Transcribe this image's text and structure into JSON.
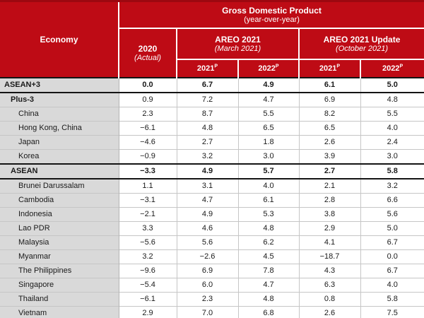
{
  "colors": {
    "header_red": "#be0b15",
    "header_red_dark": "#9c0810",
    "header_text": "#ffffff",
    "economy_col_bg": "#d9d9d9",
    "grid_line": "#c6c6c6",
    "heavy_line": "#141414",
    "bottom_border": "#222c42",
    "text": "#1a1a1a"
  },
  "table": {
    "header": {
      "economy": "Economy",
      "gdp_title": "Gross Domestic Product",
      "gdp_subtitle": "(year-over-year)",
      "col_2020": {
        "title": "2020",
        "subtitle": "(Actual)"
      },
      "areo": {
        "title": "AREO 2021",
        "subtitle": "(March 2021)"
      },
      "areo_update": {
        "title": "AREO 2021 Update",
        "subtitle": "(October 2021)"
      },
      "year_cols": [
        {
          "year": "2021",
          "sup": "P"
        },
        {
          "year": "2022",
          "sup": "P"
        },
        {
          "year": "2021",
          "sup": "P"
        },
        {
          "year": "2022",
          "sup": "P"
        }
      ]
    },
    "rows": [
      {
        "label": "ASEAN+3",
        "indent": 0,
        "emphasis": "major",
        "values": [
          "0.0",
          "6.7",
          "4.9",
          "6.1",
          "5.0"
        ]
      },
      {
        "label": "Plus-3",
        "indent": 1,
        "emphasis": "sub",
        "values": [
          "0.9",
          "7.2",
          "4.7",
          "6.9",
          "4.8"
        ]
      },
      {
        "label": "China",
        "indent": 2,
        "emphasis": "none",
        "values": [
          "2.3",
          "8.7",
          "5.5",
          "8.2",
          "5.5"
        ]
      },
      {
        "label": "Hong Kong, China",
        "indent": 2,
        "emphasis": "none",
        "values": [
          "−6.1",
          "4.8",
          "6.5",
          "6.5",
          "4.0"
        ]
      },
      {
        "label": "Japan",
        "indent": 2,
        "emphasis": "none",
        "values": [
          "−4.6",
          "2.7",
          "1.8",
          "2.6",
          "2.4"
        ]
      },
      {
        "label": "Korea",
        "indent": 2,
        "emphasis": "none",
        "values": [
          "−0.9",
          "3.2",
          "3.0",
          "3.9",
          "3.0"
        ]
      },
      {
        "label": "ASEAN",
        "indent": 1,
        "emphasis": "major",
        "values": [
          "−3.3",
          "4.9",
          "5.7",
          "2.7",
          "5.8"
        ]
      },
      {
        "label": "Brunei Darussalam",
        "indent": 2,
        "emphasis": "none",
        "values": [
          "1.1",
          "3.1",
          "4.0",
          "2.1",
          "3.2"
        ]
      },
      {
        "label": "Cambodia",
        "indent": 2,
        "emphasis": "none",
        "values": [
          "−3.1",
          "4.7",
          "6.1",
          "2.8",
          "6.6"
        ]
      },
      {
        "label": "Indonesia",
        "indent": 2,
        "emphasis": "none",
        "values": [
          "−2.1",
          "4.9",
          "5.3",
          "3.8",
          "5.6"
        ]
      },
      {
        "label": "Lao PDR",
        "indent": 2,
        "emphasis": "none",
        "values": [
          "3.3",
          "4.6",
          "4.8",
          "2.9",
          "5.0"
        ]
      },
      {
        "label": "Malaysia",
        "indent": 2,
        "emphasis": "none",
        "values": [
          "−5.6",
          "5.6",
          "6.2",
          "4.1",
          "6.7"
        ]
      },
      {
        "label": "Myanmar",
        "indent": 2,
        "emphasis": "none",
        "values": [
          "3.2",
          "−2.6",
          "4.5",
          "−18.7",
          "0.0"
        ]
      },
      {
        "label": "The Philippines",
        "indent": 2,
        "emphasis": "none",
        "values": [
          "−9.6",
          "6.9",
          "7.8",
          "4.3",
          "6.7"
        ]
      },
      {
        "label": "Singapore",
        "indent": 2,
        "emphasis": "none",
        "values": [
          "−5.4",
          "6.0",
          "4.7",
          "6.3",
          "4.0"
        ]
      },
      {
        "label": "Thailand",
        "indent": 2,
        "emphasis": "none",
        "values": [
          "−6.1",
          "2.3",
          "4.8",
          "0.8",
          "5.8"
        ]
      },
      {
        "label": "Vietnam",
        "indent": 2,
        "emphasis": "none",
        "values": [
          "2.9",
          "7.0",
          "6.8",
          "2.6",
          "7.5"
        ]
      }
    ]
  }
}
